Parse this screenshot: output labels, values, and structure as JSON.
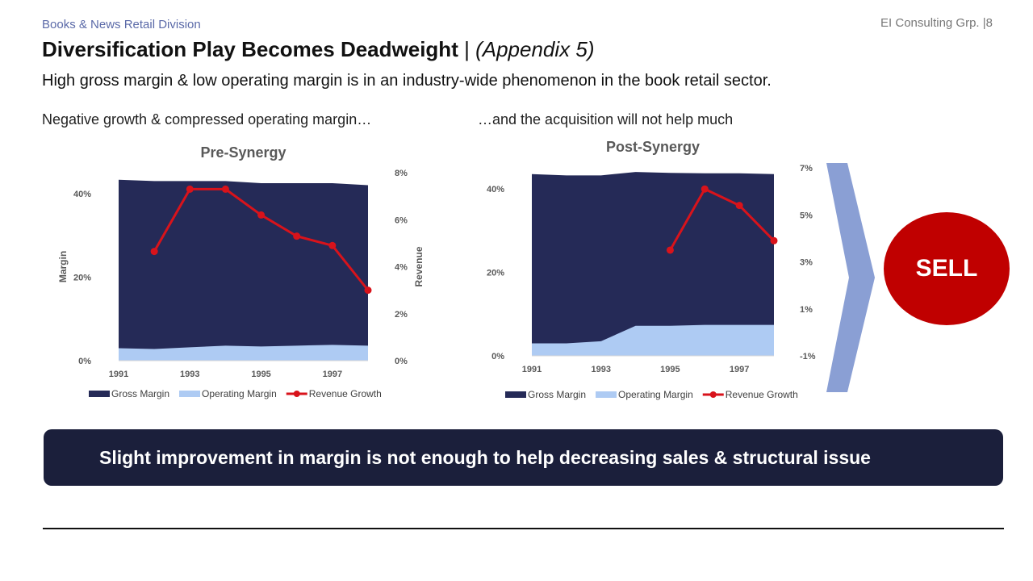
{
  "header": {
    "division": "Books & News Retail Division",
    "page_ref": "EI Consulting Grp. |8",
    "title_main": "Diversification Play Becomes Deadweight",
    "title_sep": " | ",
    "title_appendix": "(Appendix 5)",
    "subtitle": "High gross margin & low operating margin is in an industry-wide phenomenon in the book retail sector."
  },
  "captions": {
    "left": "Negative growth & compressed operating margin…",
    "right": "…and the acquisition will not help much"
  },
  "chart_data": [
    {
      "type": "area",
      "title": "Pre-Synergy",
      "xlabel": "",
      "ylabel": "Margin",
      "y2label": "Revenue",
      "x": [
        1991,
        1992,
        1993,
        1994,
        1995,
        1996,
        1997,
        1998
      ],
      "x_tick_labels": [
        "1991",
        "1993",
        "1995",
        "1997"
      ],
      "ylim": [
        0,
        0.45
      ],
      "y_ticks": [
        0,
        0.2,
        0.4
      ],
      "y_tick_labels": [
        "0%",
        "20%",
        "40%"
      ],
      "y2lim": [
        0,
        0.08
      ],
      "y2_ticks": [
        0,
        0.02,
        0.04,
        0.06,
        0.08
      ],
      "y2_tick_labels": [
        "0%",
        "2%",
        "4%",
        "6%",
        "8%"
      ],
      "legend_position": "bottom",
      "series": [
        {
          "name": "Gross Margin",
          "kind": "area",
          "axis": "left",
          "color": "#252a57",
          "values": [
            0.433,
            0.43,
            0.43,
            0.43,
            0.425,
            0.425,
            0.425,
            0.42
          ]
        },
        {
          "name": "Operating Margin",
          "kind": "area",
          "axis": "left",
          "color": "#aecbf3",
          "values": [
            0.03,
            0.028,
            0.032,
            0.036,
            0.034,
            0.036,
            0.038,
            0.036
          ]
        },
        {
          "name": "Revenue Growth",
          "kind": "line",
          "axis": "right",
          "color": "#d8131b",
          "values": [
            null,
            0.0465,
            0.073,
            0.073,
            0.062,
            0.053,
            0.049,
            0.03
          ]
        }
      ]
    },
    {
      "type": "area",
      "title": "Post-Synergy",
      "xlabel": "",
      "ylabel": "",
      "x": [
        1991,
        1992,
        1993,
        1994,
        1995,
        1996,
        1997,
        1998
      ],
      "x_tick_labels": [
        "1991",
        "1993",
        "1995",
        "1997"
      ],
      "ylim": [
        0,
        0.45
      ],
      "y_ticks": [
        0,
        0.2,
        0.4
      ],
      "y_tick_labels": [
        "0%",
        "20%",
        "40%"
      ],
      "y2lim": [
        -0.01,
        0.07
      ],
      "y2_ticks": [
        -0.01,
        0.01,
        0.03,
        0.05,
        0.07
      ],
      "y2_tick_labels": [
        "-1%",
        "1%",
        "3%",
        "5%",
        "7%"
      ],
      "legend_position": "bottom",
      "series": [
        {
          "name": "Gross Margin",
          "kind": "area",
          "axis": "left",
          "color": "#252a57",
          "values": [
            0.435,
            0.432,
            0.432,
            0.44,
            0.438,
            0.437,
            0.437,
            0.435
          ]
        },
        {
          "name": "Operating Margin",
          "kind": "area",
          "axis": "left",
          "color": "#aecbf3",
          "values": [
            0.03,
            0.03,
            0.035,
            0.072,
            0.072,
            0.074,
            0.074,
            0.074
          ]
        },
        {
          "name": "Revenue Growth",
          "kind": "line",
          "axis": "right",
          "color": "#d8131b",
          "values": [
            null,
            null,
            null,
            null,
            0.035,
            0.061,
            0.054,
            0.039
          ]
        }
      ]
    }
  ],
  "recommendation": {
    "label": "SELL",
    "color": "#c00000"
  },
  "chevron": {
    "color": "#8a9fd4"
  },
  "banner": {
    "text": "Slight improvement in margin is not enough to help decreasing sales & structural issue",
    "color": "#1b1f3b"
  }
}
